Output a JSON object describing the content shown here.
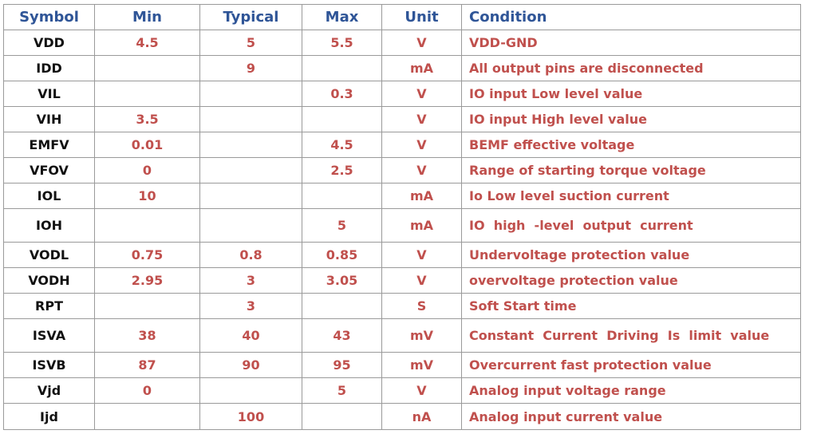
{
  "table": {
    "header": [
      "Symbol",
      "Min",
      "Typical",
      "Max",
      "Unit",
      "Condition"
    ],
    "rows": [
      [
        "VDD",
        "4.5",
        "5",
        "5.5",
        "V",
        "VDD-GND"
      ],
      [
        "IDD",
        null,
        "9",
        null,
        "mA",
        "All output pins are disconnected"
      ],
      [
        "VIL",
        null,
        null,
        "0.3",
        "V",
        "IO input Low level value"
      ],
      [
        "VIH",
        "3.5",
        null,
        null,
        "V",
        "IO input High level value"
      ],
      [
        "EMFV",
        "0.01",
        null,
        "4.5",
        "V",
        "BEMF effective voltage"
      ],
      [
        "VFOV",
        "0",
        null,
        "2.5",
        "V",
        "Range of starting torque voltage"
      ],
      [
        "IOL",
        "10",
        null,
        null,
        "mA",
        "Io Low level suction current"
      ],
      [
        "IOH",
        null,
        null,
        "5",
        "mA",
        "IO  high  -level  output  current"
      ],
      [
        "VODL",
        "0.75",
        "0.8",
        "0.85",
        "V",
        "Undervoltage protection value"
      ],
      [
        "VODH",
        "2.95",
        "3",
        "3.05",
        "V",
        "overvoltage protection value"
      ],
      [
        "RPT",
        null,
        "3",
        null,
        "S",
        "Soft Start time"
      ],
      [
        "ISVA",
        "38",
        "40",
        "43",
        "mV",
        "Constant  Current  Driving  Is  limit  value"
      ],
      [
        "ISVB",
        "87",
        "90",
        "95",
        "mV",
        "Overcurrent fast protection value"
      ],
      [
        "Vjd",
        "0",
        null,
        "5",
        "V",
        "Analog input voltage range"
      ],
      [
        "Ijd",
        null,
        "100",
        null,
        "nA",
        "Analog input current value"
      ]
    ]
  }
}
